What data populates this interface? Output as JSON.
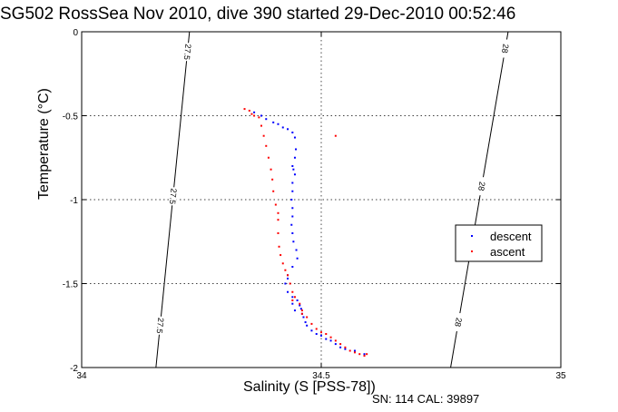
{
  "header": {
    "title": "SG502 RossSea Nov 2010, dive 390 started 29-Dec-2010 00:52:46",
    "footnote": "SN: 114  CAL: 39897"
  },
  "chart_data": {
    "type": "scatter",
    "title": "SG502 RossSea Nov 2010, dive 390 started 29-Dec-2010 00:52:46",
    "xlabel": "Salinity (S [PSS-78])",
    "ylabel": "Temperature (°C)",
    "xlim": [
      34,
      35
    ],
    "ylim": [
      -2,
      0
    ],
    "xticks": [
      34,
      34.5,
      35
    ],
    "yticks": [
      0,
      -0.5,
      -1,
      -1.5,
      -2
    ],
    "xtick_labels": [
      "34",
      "34.5",
      "35"
    ],
    "ytick_labels": [
      "0",
      "-0.5",
      "-1",
      "-1.5",
      "-2"
    ],
    "grid": "dotted",
    "legend_position": "right",
    "density_contours": [
      {
        "label": "27.5",
        "points": [
          [
            34.225,
            0
          ],
          [
            34.155,
            -2
          ]
        ],
        "label_y": [
          -0.12,
          -0.98,
          -1.75
        ]
      },
      {
        "label": "28",
        "points": [
          [
            34.89,
            0
          ],
          [
            34.77,
            -2
          ]
        ],
        "label_y": [
          -0.1,
          -0.92,
          -1.73
        ]
      }
    ],
    "series": [
      {
        "name": "descent",
        "color": "#0000ff",
        "points": [
          [
            34.36,
            -0.48
          ],
          [
            34.375,
            -0.5
          ],
          [
            34.385,
            -0.52
          ],
          [
            34.4,
            -0.54
          ],
          [
            34.41,
            -0.55
          ],
          [
            34.42,
            -0.57
          ],
          [
            34.43,
            -0.58
          ],
          [
            34.44,
            -0.6
          ],
          [
            34.445,
            -0.63
          ],
          [
            34.447,
            -0.7
          ],
          [
            34.445,
            -0.75
          ],
          [
            34.44,
            -0.8
          ],
          [
            34.442,
            -0.82
          ],
          [
            34.445,
            -0.85
          ],
          [
            34.44,
            -0.9
          ],
          [
            34.44,
            -0.95
          ],
          [
            34.438,
            -1.0
          ],
          [
            34.44,
            -1.05
          ],
          [
            34.44,
            -1.1
          ],
          [
            34.438,
            -1.15
          ],
          [
            34.44,
            -1.2
          ],
          [
            34.442,
            -1.25
          ],
          [
            34.448,
            -1.3
          ],
          [
            34.45,
            -1.35
          ],
          [
            34.44,
            -1.4
          ],
          [
            34.43,
            -1.45
          ],
          [
            34.425,
            -1.5
          ],
          [
            34.43,
            -1.55
          ],
          [
            34.44,
            -1.58
          ],
          [
            34.45,
            -1.6
          ],
          [
            34.455,
            -1.63
          ],
          [
            34.458,
            -1.65
          ],
          [
            34.46,
            -1.68
          ],
          [
            34.463,
            -1.7
          ],
          [
            34.467,
            -1.73
          ],
          [
            34.47,
            -1.75
          ],
          [
            34.48,
            -1.78
          ],
          [
            34.49,
            -1.8
          ],
          [
            34.5,
            -1.81
          ],
          [
            34.51,
            -1.83
          ],
          [
            34.52,
            -1.84
          ],
          [
            34.53,
            -1.86
          ],
          [
            34.54,
            -1.88
          ],
          [
            34.55,
            -1.89
          ],
          [
            34.57,
            -1.9
          ],
          [
            34.59,
            -1.92
          ],
          [
            34.44,
            -1.62
          ],
          [
            34.445,
            -1.66
          ],
          [
            34.43,
            -1.47
          ]
        ]
      },
      {
        "name": "ascent",
        "color": "#ff0000",
        "points": [
          [
            34.34,
            -0.46
          ],
          [
            34.35,
            -0.47
          ],
          [
            34.355,
            -0.49
          ],
          [
            34.36,
            -0.5
          ],
          [
            34.37,
            -0.51
          ],
          [
            34.375,
            -0.56
          ],
          [
            34.38,
            -0.62
          ],
          [
            34.385,
            -0.68
          ],
          [
            34.39,
            -0.75
          ],
          [
            34.395,
            -0.82
          ],
          [
            34.398,
            -0.88
          ],
          [
            34.4,
            -0.95
          ],
          [
            34.405,
            -1.03
          ],
          [
            34.41,
            -1.08
          ],
          [
            34.41,
            -1.12
          ],
          [
            34.41,
            -1.2
          ],
          [
            34.412,
            -1.28
          ],
          [
            34.415,
            -1.33
          ],
          [
            34.42,
            -1.38
          ],
          [
            34.425,
            -1.42
          ],
          [
            34.43,
            -1.45
          ],
          [
            34.435,
            -1.5
          ],
          [
            34.44,
            -1.55
          ],
          [
            34.445,
            -1.58
          ],
          [
            34.455,
            -1.62
          ],
          [
            34.46,
            -1.66
          ],
          [
            34.47,
            -1.7
          ],
          [
            34.48,
            -1.74
          ],
          [
            34.49,
            -1.77
          ],
          [
            34.5,
            -1.79
          ],
          [
            34.51,
            -1.8
          ],
          [
            34.52,
            -1.82
          ],
          [
            34.53,
            -1.84
          ],
          [
            34.54,
            -1.86
          ],
          [
            34.55,
            -1.88
          ],
          [
            34.56,
            -1.9
          ],
          [
            34.57,
            -1.91
          ],
          [
            34.58,
            -1.92
          ],
          [
            34.59,
            -1.93
          ],
          [
            34.595,
            -1.92
          ],
          [
            34.53,
            -0.62
          ],
          [
            34.44,
            -1.6
          ],
          [
            34.46,
            -1.68
          ]
        ]
      }
    ]
  }
}
